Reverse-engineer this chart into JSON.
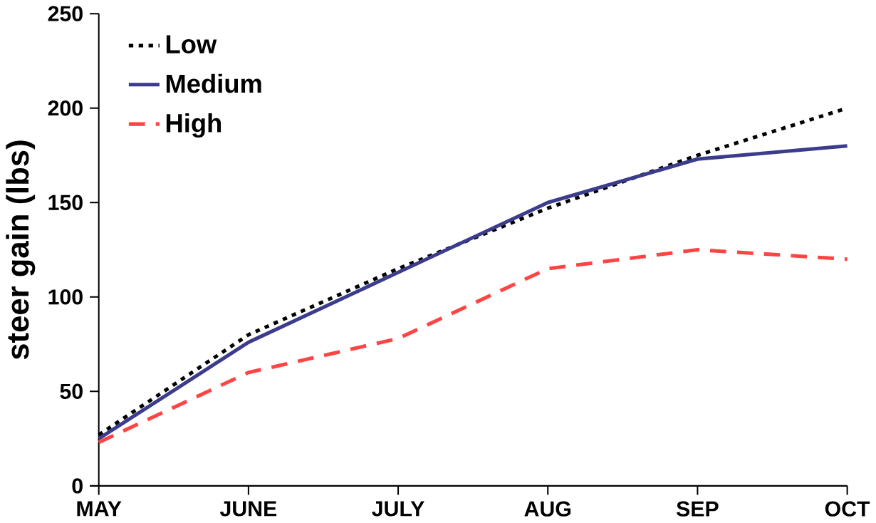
{
  "chart_data": {
    "type": "line",
    "ylabel": "steer gain (lbs)",
    "categories": [
      "MAY",
      "JUNE",
      "JULY",
      "AUG",
      "SEP",
      "OCT"
    ],
    "series": [
      {
        "name": "Low",
        "color": "#000000",
        "line_style": "dotted",
        "values": [
          27,
          80,
          115,
          147,
          175,
          200
        ]
      },
      {
        "name": "Medium",
        "color": "#3c3c8c",
        "line_style": "solid",
        "values": [
          25,
          76,
          113,
          150,
          173,
          180
        ]
      },
      {
        "name": "High",
        "color": "#ff4444",
        "line_style": "dashed",
        "values": [
          23,
          60,
          78,
          115,
          125,
          120
        ]
      }
    ],
    "ylim": [
      0,
      250
    ],
    "yticks": [
      0,
      50,
      100,
      150,
      200,
      250
    ],
    "grid": false,
    "legend": "top left",
    "marker": "none"
  }
}
